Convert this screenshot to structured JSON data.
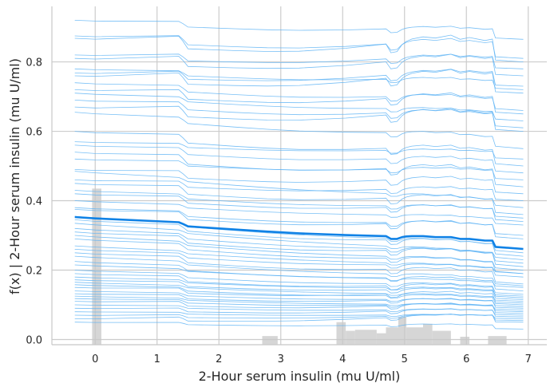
{
  "chart_data": {
    "type": "line",
    "xlabel": "2-Hour serum insulin (mu U/ml)",
    "ylabel": "f(x) | 2-Hour serum insulin (mu U/ml)",
    "xlim": [
      -0.7,
      7.3
    ],
    "ylim": [
      -0.015,
      0.96
    ],
    "x_ticks": [
      "0",
      "1",
      "2",
      "3",
      "4",
      "5",
      "6",
      "7"
    ],
    "y_ticks": [
      "0.0",
      "0.2",
      "0.4",
      "0.6",
      "0.8"
    ],
    "grid": true,
    "colors": {
      "ice_line": "#5fb4f5",
      "mean_line": "#1082e6",
      "histogram": "#c8c8c8",
      "grid": "#cccccc"
    },
    "x_grid": [
      -0.33,
      0.0,
      1.35,
      1.42,
      1.5,
      2.25,
      2.78,
      3.3,
      4.05,
      4.7,
      4.78,
      4.88,
      4.96,
      5.03,
      5.12,
      5.3,
      5.5,
      5.75,
      5.9,
      6.05,
      6.3,
      6.42,
      6.47,
      6.92
    ],
    "mean_curve": {
      "name": "average",
      "y": [
        0.353,
        0.349,
        0.338,
        0.333,
        0.326,
        0.317,
        0.311,
        0.306,
        0.301,
        0.298,
        0.29,
        0.29,
        0.295,
        0.297,
        0.298,
        0.298,
        0.295,
        0.295,
        0.29,
        0.29,
        0.285,
        0.285,
        0.267,
        0.261
      ]
    },
    "ice_curves": {
      "baselines": [
        0.92,
        0.875,
        0.868,
        0.82,
        0.81,
        0.78,
        0.768,
        0.76,
        0.74,
        0.72,
        0.71,
        0.69,
        0.67,
        0.655,
        0.6,
        0.57,
        0.56,
        0.54,
        0.52,
        0.49,
        0.485,
        0.46,
        0.45,
        0.43,
        0.42,
        0.4,
        0.38,
        0.375,
        0.355,
        0.345,
        0.335,
        0.32,
        0.31,
        0.3,
        0.29,
        0.27,
        0.26,
        0.25,
        0.24,
        0.225,
        0.215,
        0.2,
        0.19,
        0.18,
        0.172,
        0.165,
        0.158,
        0.15,
        0.14,
        0.132,
        0.125,
        0.118,
        0.11,
        0.1,
        0.09,
        0.08,
        0.07,
        0.06,
        0.05
      ],
      "end_values": [
        0.865,
        0.81,
        0.8,
        0.78,
        0.76,
        0.72,
        0.73,
        0.71,
        0.66,
        0.65,
        0.63,
        0.61,
        0.6,
        0.55,
        0.5,
        0.52,
        0.48,
        0.44,
        0.46,
        0.42,
        0.38,
        0.4,
        0.36,
        0.35,
        0.34,
        0.33,
        0.3,
        0.29,
        0.25,
        0.24,
        0.23,
        0.22,
        0.21,
        0.2,
        0.19,
        0.19,
        0.18,
        0.16,
        0.155,
        0.14,
        0.15,
        0.13,
        0.12,
        0.125,
        0.115,
        0.11,
        0.1,
        0.105,
        0.095,
        0.09,
        0.085,
        0.08,
        0.075,
        0.07,
        0.065,
        0.06,
        0.055,
        0.05,
        0.03
      ]
    },
    "histogram": {
      "bins": [
        {
          "x0": -0.05,
          "x1": 0.1,
          "height": 0.435
        },
        {
          "x0": 2.7,
          "x1": 2.95,
          "height": 0.01
        },
        {
          "x0": 3.9,
          "x1": 4.05,
          "height": 0.05
        },
        {
          "x0": 4.05,
          "x1": 4.2,
          "height": 0.025
        },
        {
          "x0": 4.2,
          "x1": 4.55,
          "height": 0.028
        },
        {
          "x0": 4.55,
          "x1": 4.7,
          "height": 0.018
        },
        {
          "x0": 4.7,
          "x1": 4.9,
          "height": 0.035
        },
        {
          "x0": 4.9,
          "x1": 5.03,
          "height": 0.065
        },
        {
          "x0": 5.03,
          "x1": 5.3,
          "height": 0.035
        },
        {
          "x0": 5.3,
          "x1": 5.45,
          "height": 0.045
        },
        {
          "x0": 5.45,
          "x1": 5.75,
          "height": 0.025
        },
        {
          "x0": 5.9,
          "x1": 6.05,
          "height": 0.008
        },
        {
          "x0": 6.35,
          "x1": 6.65,
          "height": 0.01
        }
      ]
    }
  }
}
